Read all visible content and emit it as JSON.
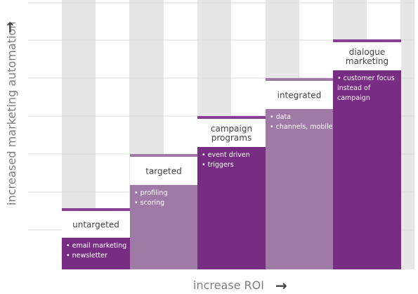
{
  "axes": {
    "y_label": "increased marketing automation",
    "y_arrow_icon": "arrow-up-icon",
    "x_label": "increase ROI",
    "x_arrow_icon": "arrow-right-icon"
  },
  "steps": [
    {
      "title_lines": [
        "untargeted"
      ],
      "bullets": [
        "email marketing",
        "newsletter"
      ],
      "shade": "dark"
    },
    {
      "title_lines": [
        "targeted"
      ],
      "bullets": [
        "profiling",
        "scoring"
      ],
      "shade": "light"
    },
    {
      "title_lines": [
        "campaign",
        "programs"
      ],
      "bullets": [
        "event driven",
        "triggers"
      ],
      "shade": "dark"
    },
    {
      "title_lines": [
        "integrated"
      ],
      "bullets": [
        "data",
        "channels, mobile"
      ],
      "shade": "light"
    },
    {
      "title_lines": [
        "dialogue",
        "marketing"
      ],
      "bullets": [
        "customer focus",
        "instead of",
        "campaign"
      ],
      "shade": "dark"
    }
  ],
  "colors": {
    "dark_purple": "#772d81",
    "light_purple": "#a07aa7",
    "top_strip": "#8a3f92",
    "column_gray": "#e6e6e6",
    "gridline": "#d9d9d9"
  }
}
